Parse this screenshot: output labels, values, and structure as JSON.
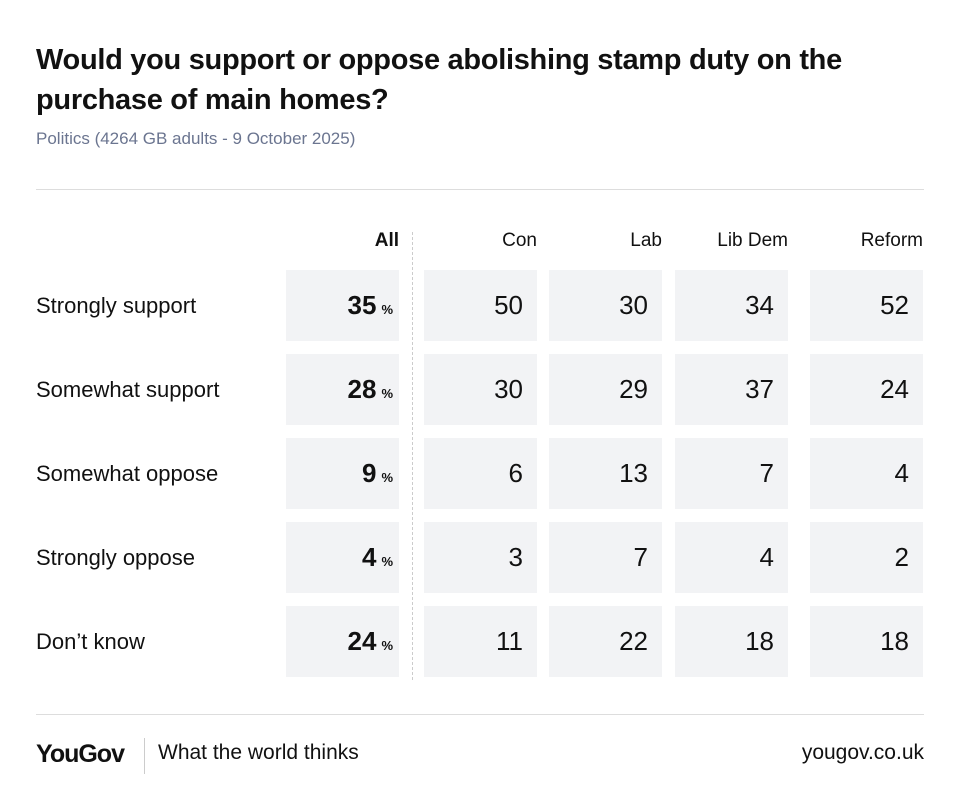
{
  "chart_data": {
    "type": "table",
    "title": "Would you support or oppose abolishing stamp duty on the purchase of main homes?",
    "subtitle": "Politics (4264 GB adults - 9 October 2025)",
    "columns": [
      "All",
      "Con",
      "Lab",
      "Lib Dem",
      "Reform"
    ],
    "unit_all": "%",
    "rows": [
      {
        "label": "Strongly support",
        "values": [
          35,
          50,
          30,
          34,
          52
        ]
      },
      {
        "label": "Somewhat support",
        "values": [
          28,
          30,
          29,
          37,
          24
        ]
      },
      {
        "label": "Somewhat oppose",
        "values": [
          9,
          6,
          13,
          7,
          4
        ]
      },
      {
        "label": "Strongly oppose",
        "values": [
          4,
          3,
          7,
          4,
          2
        ]
      },
      {
        "label": "Don’t know",
        "values": [
          24,
          11,
          22,
          18,
          18
        ]
      }
    ],
    "colors": {
      "cell_bg": "#f2f3f5",
      "subtitle": "#6b7590",
      "text": "#111111"
    }
  },
  "footer": {
    "logo": "YouGov",
    "tagline": "What the world thinks",
    "site": "yougov.co.uk"
  }
}
